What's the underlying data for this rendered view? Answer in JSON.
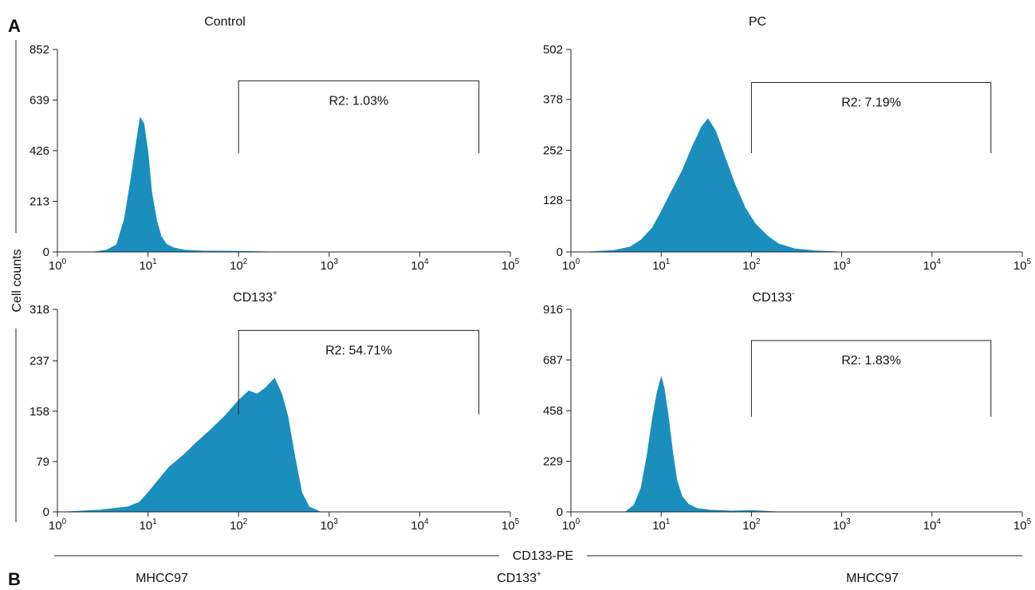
{
  "figure": {
    "panel_labels": [
      "A",
      "B"
    ],
    "y_axis_label": "Cell counts",
    "x_axis_label": "CD133-PE",
    "bottom_labels": [
      {
        "text": "MHCC97",
        "sup": ""
      },
      {
        "text": "CD133",
        "sup": "+"
      },
      {
        "text": "MHCC97",
        "sup": ""
      }
    ],
    "colors": {
      "fill": "#1a8fbe",
      "axis": "#222222"
    }
  },
  "chart_data": [
    {
      "type": "area",
      "title": "Control",
      "title_sup": "",
      "x_scale": "log",
      "xlim": [
        1,
        100000
      ],
      "x_ticks": [
        {
          "base": "10",
          "exp": "0"
        },
        {
          "base": "10",
          "exp": "1"
        },
        {
          "base": "10",
          "exp": "2"
        },
        {
          "base": "10",
          "exp": "3"
        },
        {
          "base": "10",
          "exp": "4"
        },
        {
          "base": "10",
          "exp": "5"
        }
      ],
      "ylim": [
        0,
        852
      ],
      "y_ticks": [
        0,
        213,
        426,
        639,
        852
      ],
      "gate": {
        "label": "R2: 1.03%",
        "x_start": 100,
        "x_end": 45000,
        "y_top": 720,
        "y_bottom": 415
      },
      "histogram": {
        "x": [
          2.5,
          3.5,
          4.5,
          5.5,
          6.5,
          7.5,
          8.2,
          9,
          10,
          11,
          12.5,
          14,
          16,
          19,
          25,
          40,
          100,
          250
        ],
        "y": [
          0,
          8,
          30,
          140,
          310,
          470,
          565,
          540,
          420,
          250,
          130,
          65,
          32,
          18,
          8,
          4,
          3,
          0
        ]
      }
    },
    {
      "type": "area",
      "title": "PC",
      "title_sup": "",
      "x_scale": "log",
      "xlim": [
        1,
        100000
      ],
      "x_ticks": [
        {
          "base": "10",
          "exp": "0"
        },
        {
          "base": "10",
          "exp": "1"
        },
        {
          "base": "10",
          "exp": "2"
        },
        {
          "base": "10",
          "exp": "3"
        },
        {
          "base": "10",
          "exp": "4"
        },
        {
          "base": "10",
          "exp": "5"
        }
      ],
      "ylim": [
        0,
        502
      ],
      "y_ticks": [
        0,
        128,
        252,
        378,
        502
      ],
      "gate": {
        "label": "R2: 7.19%",
        "x_start": 100,
        "x_end": 45000,
        "y_top": 420,
        "y_bottom": 245
      },
      "histogram": {
        "x": [
          1.5,
          3,
          4.5,
          6,
          8,
          10,
          13,
          17,
          22,
          28,
          33,
          40,
          50,
          65,
          85,
          110,
          150,
          200,
          300,
          500,
          1000
        ],
        "y": [
          0,
          4,
          12,
          30,
          60,
          100,
          150,
          200,
          260,
          310,
          330,
          300,
          240,
          170,
          110,
          70,
          40,
          20,
          8,
          3,
          0
        ]
      }
    },
    {
      "type": "area",
      "title": "CD133",
      "title_sup": "+",
      "x_scale": "log",
      "xlim": [
        1,
        100000
      ],
      "x_ticks": [
        {
          "base": "10",
          "exp": "0"
        },
        {
          "base": "10",
          "exp": "1"
        },
        {
          "base": "10",
          "exp": "2"
        },
        {
          "base": "10",
          "exp": "3"
        },
        {
          "base": "10",
          "exp": "4"
        },
        {
          "base": "10",
          "exp": "5"
        }
      ],
      "ylim": [
        0,
        318
      ],
      "y_ticks": [
        0,
        79,
        158,
        237,
        318
      ],
      "gate": {
        "label": "R2: 54.71%",
        "x_start": 100,
        "x_end": 45000,
        "y_top": 285,
        "y_bottom": 153
      },
      "histogram": {
        "x": [
          1.2,
          3,
          6,
          8,
          10,
          13,
          17,
          25,
          35,
          50,
          70,
          100,
          130,
          160,
          200,
          250,
          300,
          350,
          420,
          500,
          600,
          800
        ],
        "y": [
          0,
          3,
          8,
          15,
          30,
          50,
          70,
          90,
          110,
          130,
          150,
          175,
          190,
          185,
          195,
          210,
          185,
          150,
          85,
          30,
          8,
          0
        ]
      }
    },
    {
      "type": "area",
      "title": "CD133",
      "title_sup": "-",
      "x_scale": "log",
      "xlim": [
        1,
        100000
      ],
      "x_ticks": [
        {
          "base": "10",
          "exp": "0"
        },
        {
          "base": "10",
          "exp": "1"
        },
        {
          "base": "10",
          "exp": "2"
        },
        {
          "base": "10",
          "exp": "3"
        },
        {
          "base": "10",
          "exp": "4"
        },
        {
          "base": "10",
          "exp": "5"
        }
      ],
      "ylim": [
        0,
        916
      ],
      "y_ticks": [
        0,
        229,
        458,
        687,
        916
      ],
      "gate": {
        "label": "R2: 1.83%",
        "x_start": 100,
        "x_end": 45000,
        "y_top": 775,
        "y_bottom": 430
      },
      "histogram": {
        "x": [
          4,
          5,
          6,
          7,
          8,
          9,
          10,
          10.8,
          12,
          13.5,
          15,
          17,
          20,
          25,
          35,
          60,
          100,
          200
        ],
        "y": [
          0,
          30,
          110,
          260,
          420,
          540,
          610,
          560,
          430,
          260,
          140,
          70,
          35,
          15,
          8,
          4,
          6,
          0
        ]
      }
    }
  ]
}
